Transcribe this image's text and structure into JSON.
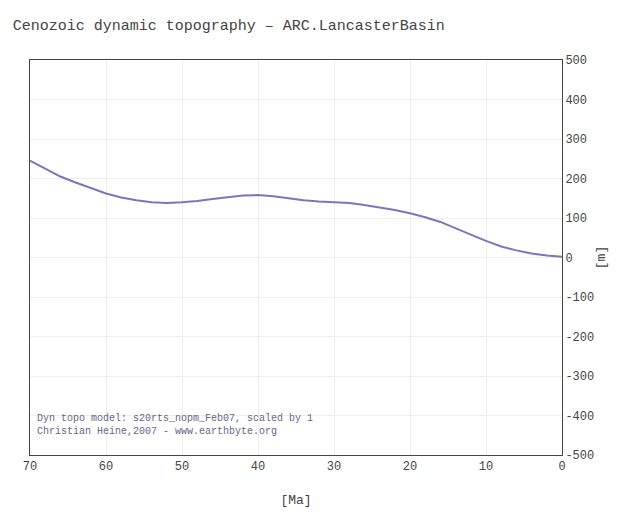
{
  "chart_data": {
    "type": "line",
    "title": "Cenozoic dynamic topography – ARC.LancasterBasin",
    "xlabel": "[Ma]",
    "ylabel": "[m]",
    "annotations": [
      "Dyn topo model: s20rts_nopm_Feb07, scaled by 1",
      "Christian Heine,2007 - www.earthbyte.org"
    ],
    "x": [
      70,
      68,
      66,
      64,
      62,
      60,
      58,
      56,
      54,
      52,
      50,
      48,
      46,
      44,
      42,
      40,
      38,
      36,
      34,
      32,
      30,
      28,
      26,
      24,
      22,
      20,
      18,
      16,
      14,
      12,
      10,
      8,
      6,
      4,
      2,
      0
    ],
    "values": [
      245,
      225,
      205,
      190,
      175,
      162,
      152,
      145,
      140,
      138,
      140,
      143,
      148,
      153,
      157,
      158,
      155,
      150,
      145,
      142,
      140,
      138,
      133,
      127,
      120,
      112,
      102,
      90,
      75,
      58,
      42,
      28,
      18,
      10,
      5,
      2
    ],
    "color": "#7777bb",
    "xlim": [
      70,
      0
    ],
    "ylim": [
      -500,
      500
    ],
    "xticks": [
      70,
      60,
      50,
      40,
      30,
      20,
      10,
      0
    ],
    "yticks": [
      -500,
      -400,
      -300,
      -200,
      -100,
      0,
      100,
      200,
      300,
      400,
      500
    ],
    "grid": true
  }
}
